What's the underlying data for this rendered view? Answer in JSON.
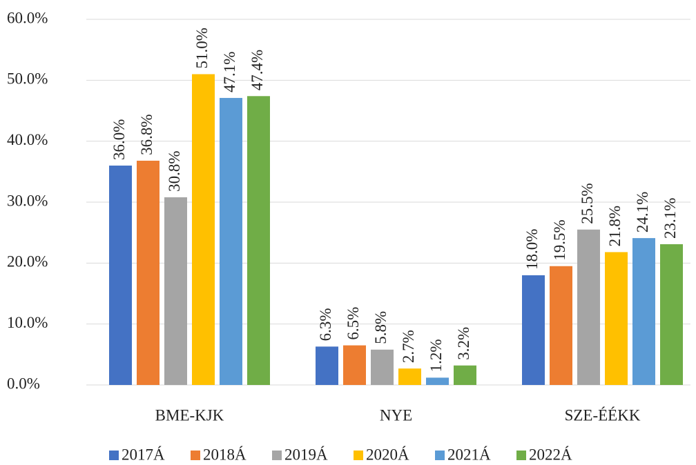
{
  "chart_data": {
    "type": "bar",
    "categories": [
      "BME-KJK",
      "NYE",
      "SZE-ÉÉKK"
    ],
    "series": [
      {
        "name": "2017Á",
        "color": "#4472c4",
        "values": [
          36.0,
          6.3,
          18.0
        ],
        "value_labels": [
          "36.0%",
          "6.3%",
          "18.0%"
        ]
      },
      {
        "name": "2018Á",
        "color": "#ed7d31",
        "values": [
          36.8,
          6.5,
          19.5
        ],
        "value_labels": [
          "36.8%",
          "6.5%",
          "19.5%"
        ]
      },
      {
        "name": "2019Á",
        "color": "#a5a5a5",
        "values": [
          30.8,
          5.8,
          25.5
        ],
        "value_labels": [
          "30.8%",
          "5.8%",
          "25.5%"
        ]
      },
      {
        "name": "2020Á",
        "color": "#ffc000",
        "values": [
          51.0,
          2.7,
          21.8
        ],
        "value_labels": [
          "51.0%",
          "2.7%",
          "21.8%"
        ]
      },
      {
        "name": "2021Á",
        "color": "#5b9bd5",
        "values": [
          47.1,
          1.2,
          24.1
        ],
        "value_labels": [
          "47.1%",
          "1.2%",
          "24.1%"
        ]
      },
      {
        "name": "2022Á",
        "color": "#70ad47",
        "values": [
          47.4,
          3.2,
          23.1
        ],
        "value_labels": [
          "47.4%",
          "3.2%",
          "23.1%"
        ]
      }
    ],
    "ylim": [
      0,
      60
    ],
    "yticks": [
      {
        "value": 0,
        "label": "0.0%"
      },
      {
        "value": 10,
        "label": "10.0%"
      },
      {
        "value": 20,
        "label": "20.0%"
      },
      {
        "value": 30,
        "label": "30.0%"
      },
      {
        "value": 40,
        "label": "40.0%"
      },
      {
        "value": 50,
        "label": "50.0%"
      },
      {
        "value": 60,
        "label": "60.0%"
      }
    ],
    "grid": true,
    "legend": "bottom"
  }
}
